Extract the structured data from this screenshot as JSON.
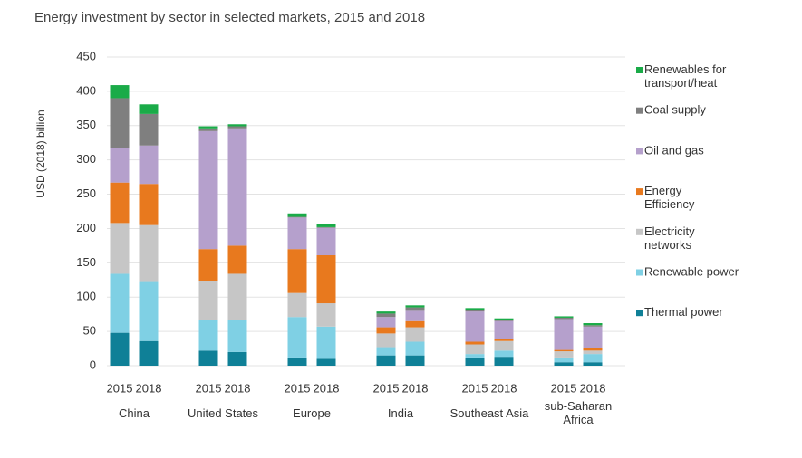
{
  "chart_data": {
    "type": "bar",
    "stacked": true,
    "title": "Energy investment by sector in selected markets, 2015 and 2018",
    "y_label": "USD (2018) billion",
    "groups": [
      "China",
      "United States",
      "Europe",
      "India",
      "Southeast Asia",
      "sub-Saharan Africa"
    ],
    "years": [
      "2015",
      "2018"
    ],
    "ylim": [
      0,
      450
    ],
    "yticks": [
      0,
      50,
      100,
      150,
      200,
      250,
      300,
      350,
      400,
      450
    ],
    "grid": true,
    "series": [
      {
        "name": "Thermal power",
        "color": "#0f8097",
        "values": [
          48,
          36,
          22,
          20,
          12,
          10,
          15,
          15,
          12,
          13,
          5,
          5
        ]
      },
      {
        "name": "Renewable power",
        "color": "#7fd0e4",
        "values": [
          86,
          86,
          45,
          46,
          59,
          47,
          12,
          20,
          5,
          9,
          7,
          12
        ]
      },
      {
        "name": "Electricity networks",
        "color": "#c6c6c6",
        "values": [
          74,
          83,
          57,
          68,
          35,
          34,
          20,
          21,
          14,
          14,
          9,
          5
        ]
      },
      {
        "name": "Energy Efficiency",
        "color": "#e8791e",
        "values": [
          59,
          60,
          46,
          41,
          64,
          70,
          9,
          9,
          4,
          3,
          2,
          4
        ]
      },
      {
        "name": "Oil and gas",
        "color": "#b5a0cc",
        "values": [
          51,
          56,
          172,
          171,
          46,
          40,
          15,
          15,
          44,
          26,
          45,
          31
        ]
      },
      {
        "name": "Coal supply",
        "color": "#7f7f7f",
        "values": [
          72,
          46,
          4,
          3,
          1,
          1,
          5,
          5,
          2,
          2,
          2,
          2
        ]
      },
      {
        "name": "Renewables for transport/heat",
        "color": "#1aab48",
        "values": [
          19,
          14,
          3,
          3,
          5,
          4,
          3,
          3,
          3,
          2,
          2,
          3
        ]
      }
    ]
  }
}
